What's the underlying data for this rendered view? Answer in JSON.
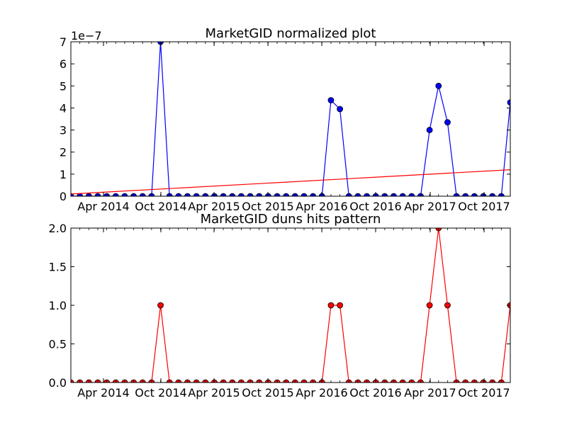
{
  "chart_data": [
    {
      "type": "line",
      "title": "MarketGID normalized plot",
      "xlabel": "",
      "ylabel": "",
      "offset_label": "1e−7",
      "x_tick_labels": [
        "Apr 2014",
        "Oct 2014",
        "Apr 2015",
        "Oct 2015",
        "Apr 2016",
        "Oct 2016",
        "Apr 2017",
        "Oct 2017"
      ],
      "y_tick_labels": [
        "0",
        "1",
        "2",
        "3",
        "4",
        "5",
        "6",
        "7"
      ],
      "ylim": [
        0,
        7
      ],
      "grid": false,
      "series": [
        {
          "color": "#0000ff",
          "marker": "circle",
          "values": [
            0,
            0,
            0,
            0,
            0,
            0,
            0,
            0,
            0,
            0,
            7.0,
            0,
            0,
            0,
            0,
            0,
            0,
            0,
            0,
            0,
            0,
            0,
            0,
            0,
            0,
            0,
            0,
            0,
            0,
            4.35,
            3.95,
            0,
            0,
            0,
            0,
            0,
            0,
            0,
            0,
            0,
            3.0,
            5.0,
            3.35,
            0,
            0,
            0,
            0,
            0,
            0,
            4.25
          ]
        },
        {
          "color": "#ff0000",
          "marker": "none",
          "values": [
            0.1,
            1.2
          ],
          "index": [
            0,
            49
          ]
        }
      ]
    },
    {
      "type": "line",
      "title": "MarketGID duns hits pattern",
      "xlabel": "",
      "ylabel": "",
      "x_tick_labels": [
        "Apr 2014",
        "Oct 2014",
        "Apr 2015",
        "Oct 2015",
        "Apr 2016",
        "Oct 2016",
        "Apr 2017",
        "Oct 2017"
      ],
      "y_tick_labels": [
        "0.0",
        "0.5",
        "1.0",
        "1.5",
        "2.0"
      ],
      "ylim": [
        0,
        2
      ],
      "grid": false,
      "series": [
        {
          "color": "#ff0000",
          "marker": "circle",
          "values": [
            0,
            0,
            0,
            0,
            0,
            0,
            0,
            0,
            0,
            0,
            1,
            0,
            0,
            0,
            0,
            0,
            0,
            0,
            0,
            0,
            0,
            0,
            0,
            0,
            0,
            0,
            0,
            0,
            0,
            1,
            1,
            0,
            0,
            0,
            0,
            0,
            0,
            0,
            0,
            0,
            1,
            2,
            1,
            0,
            0,
            0,
            0,
            0,
            0,
            1
          ]
        }
      ]
    }
  ]
}
